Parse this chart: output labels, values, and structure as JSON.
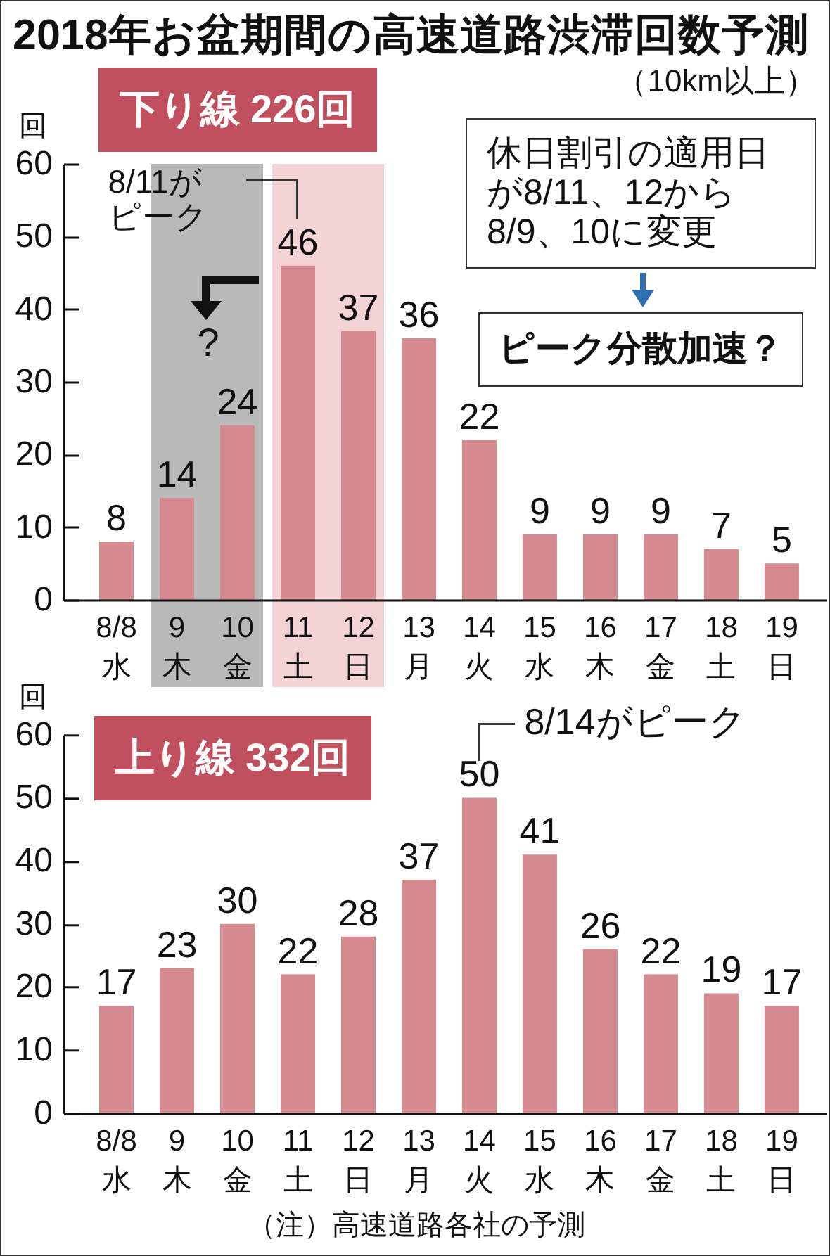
{
  "chart_data": [
    {
      "type": "bar",
      "title": "2018年お盆期間の高速道路渋滞回数予測",
      "subtitle": "（10km以上）",
      "ylabel": "回",
      "categories": [
        "8/8\n水",
        "9\n木",
        "10\n金",
        "11\n土",
        "12\n日",
        "13\n月",
        "14\n火",
        "15\n水",
        "16\n木",
        "17\n金",
        "18\n土",
        "19\n日"
      ],
      "values": [
        8,
        14,
        24,
        46,
        37,
        36,
        22,
        9,
        9,
        9,
        7,
        5
      ],
      "color": "#d48a8f",
      "ylim": [
        0,
        60
      ],
      "yticks": [
        0,
        10,
        20,
        30,
        40,
        50,
        60
      ],
      "data_labels": true,
      "bands": [
        {
          "axis": "x",
          "from": "9\n木",
          "to": "10\n金",
          "color": "#b9b9b9"
        },
        {
          "axis": "x",
          "from": "11\n土",
          "to": "12\n日",
          "color": "#f3d3d3"
        }
      ],
      "annotations": [
        "下り線 226回",
        {
          "text": "8/11がピーク",
          "x": "11\n土",
          "y": 46
        },
        "?",
        "休日割引の適用日が8/11、12から8/9、10に変更",
        "ピーク分散加速？"
      ]
    },
    {
      "type": "bar",
      "ylabel": "回",
      "categories": [
        "8/8\n水",
        "9\n木",
        "10\n金",
        "11\n土",
        "12\n日",
        "13\n月",
        "14\n火",
        "15\n水",
        "16\n木",
        "17\n金",
        "18\n土",
        "19\n日"
      ],
      "values": [
        17,
        23,
        30,
        22,
        28,
        37,
        50,
        41,
        26,
        22,
        19,
        17
      ],
      "color": "#d48a8f",
      "ylim": [
        0,
        60
      ],
      "yticks": [
        0,
        10,
        20,
        30,
        40,
        50,
        60
      ],
      "data_labels": true,
      "annotations": [
        "上り線 332回",
        {
          "text": "8/14がピーク",
          "x": "14\n火",
          "y": 50
        },
        "（注）高速道路各社の予測"
      ]
    }
  ]
}
